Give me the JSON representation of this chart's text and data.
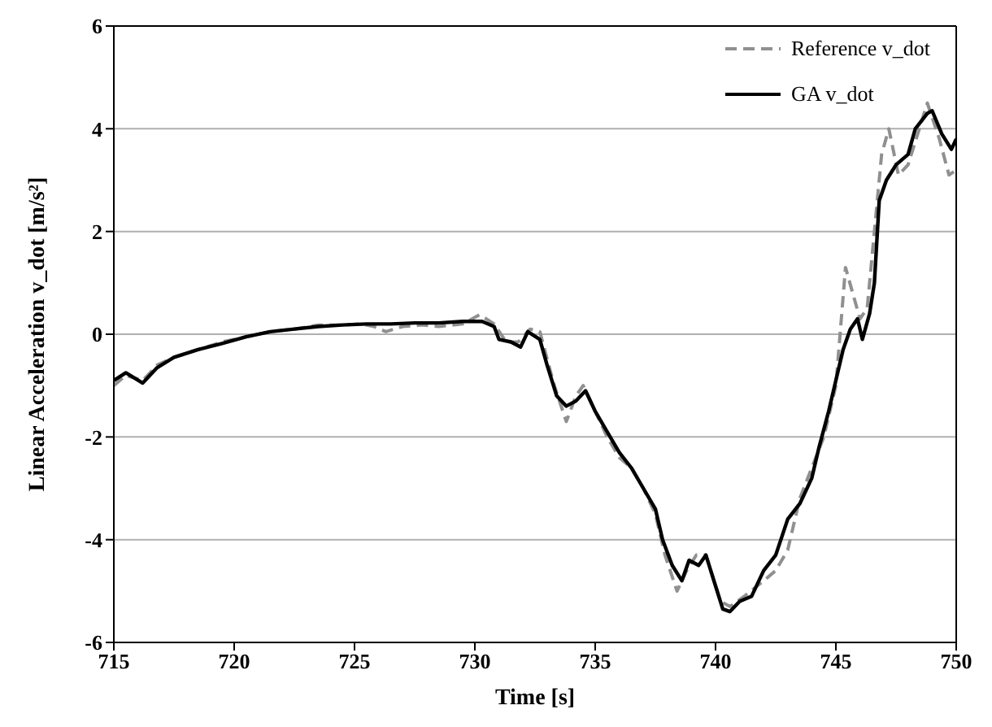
{
  "chart_data": {
    "type": "line",
    "xlabel": "Time [s]",
    "ylabel": "Linear Acceleration v_dot [m/s²]",
    "xlim": [
      715,
      750
    ],
    "xticks": [
      715,
      720,
      725,
      730,
      735,
      740,
      745,
      750
    ],
    "ylim": [
      -6,
      6
    ],
    "yticks": [
      -6,
      -4,
      -2,
      0,
      2,
      4,
      6
    ],
    "grid": "y",
    "legend": "top right",
    "marker": "none",
    "series": [
      {
        "name": "Reference v_dot",
        "color": "#909090",
        "line_style": "dashed",
        "x": [
          715,
          715.5,
          716.2,
          716.8,
          717.5,
          718.5,
          719.5,
          720.5,
          721.5,
          722.5,
          723.5,
          724.5,
          725.3,
          725.8,
          726.3,
          727,
          727.8,
          728.5,
          729.5,
          730.2,
          730.8,
          731.3,
          731.8,
          732.3,
          732.7,
          733.3,
          733.8,
          734.2,
          734.5,
          735,
          735.5,
          736,
          736.5,
          737,
          737.5,
          737.9,
          738.4,
          738.8,
          739.2,
          739.6,
          740.2,
          740.6,
          741.2,
          742,
          742.5,
          743,
          743.5,
          744,
          744.5,
          745,
          745.4,
          745.7,
          746,
          746.3,
          746.7,
          746.9,
          747.2,
          747.6,
          748,
          748.2,
          748.8,
          749.3,
          749.7,
          750
        ],
        "values": [
          -1.0,
          -0.8,
          -0.9,
          -0.6,
          -0.45,
          -0.3,
          -0.15,
          -0.05,
          0.05,
          0.1,
          0.18,
          0.18,
          0.2,
          0.15,
          0.05,
          0.15,
          0.18,
          0.15,
          0.2,
          0.38,
          0.2,
          -0.15,
          -0.15,
          0.1,
          0.05,
          -1.0,
          -1.7,
          -1.2,
          -1.0,
          -1.5,
          -2.0,
          -2.4,
          -2.6,
          -3.0,
          -3.5,
          -4.3,
          -5.0,
          -4.6,
          -4.3,
          -4.3,
          -5.2,
          -5.3,
          -5.1,
          -4.8,
          -4.6,
          -4.2,
          -3.2,
          -2.6,
          -2.0,
          -1.0,
          1.3,
          0.8,
          0.3,
          0.5,
          2.5,
          3.5,
          4.0,
          3.1,
          3.3,
          3.6,
          4.5,
          3.8,
          3.1,
          3.2
        ]
      },
      {
        "name": "GA v_dot",
        "color": "#000000",
        "line_style": "solid",
        "x": [
          715,
          715.5,
          716.2,
          716.8,
          717.5,
          718.5,
          719.5,
          720.5,
          721.5,
          722.5,
          723.5,
          724.5,
          725.5,
          726.5,
          727.5,
          728.5,
          729.5,
          730.3,
          730.8,
          731,
          731.5,
          731.9,
          732.2,
          732.7,
          733,
          733.4,
          733.8,
          734.2,
          734.6,
          735,
          735.5,
          736,
          736.5,
          737,
          737.5,
          737.8,
          738.2,
          738.6,
          738.9,
          739.3,
          739.6,
          740,
          740.3,
          740.6,
          741,
          741.5,
          742,
          742.5,
          743,
          743.5,
          744,
          744.3,
          744.7,
          745,
          745.3,
          745.6,
          745.9,
          746.1,
          746.4,
          746.6,
          746.8,
          747.1,
          747.5,
          748,
          748.3,
          748.8,
          749,
          749.4,
          749.8,
          750
        ],
        "values": [
          -0.9,
          -0.75,
          -0.95,
          -0.65,
          -0.45,
          -0.3,
          -0.18,
          -0.05,
          0.05,
          0.1,
          0.15,
          0.18,
          0.2,
          0.2,
          0.22,
          0.22,
          0.25,
          0.25,
          0.15,
          -0.1,
          -0.15,
          -0.25,
          0.05,
          -0.1,
          -0.6,
          -1.2,
          -1.4,
          -1.3,
          -1.1,
          -1.5,
          -1.9,
          -2.3,
          -2.6,
          -3.0,
          -3.4,
          -4.0,
          -4.5,
          -4.8,
          -4.4,
          -4.5,
          -4.3,
          -4.9,
          -5.35,
          -5.4,
          -5.2,
          -5.1,
          -4.6,
          -4.3,
          -3.6,
          -3.3,
          -2.8,
          -2.2,
          -1.5,
          -0.9,
          -0.3,
          0.1,
          0.3,
          -0.1,
          0.4,
          1.0,
          2.6,
          3.0,
          3.3,
          3.5,
          4.0,
          4.3,
          4.35,
          3.9,
          3.6,
          3.8
        ]
      }
    ]
  }
}
